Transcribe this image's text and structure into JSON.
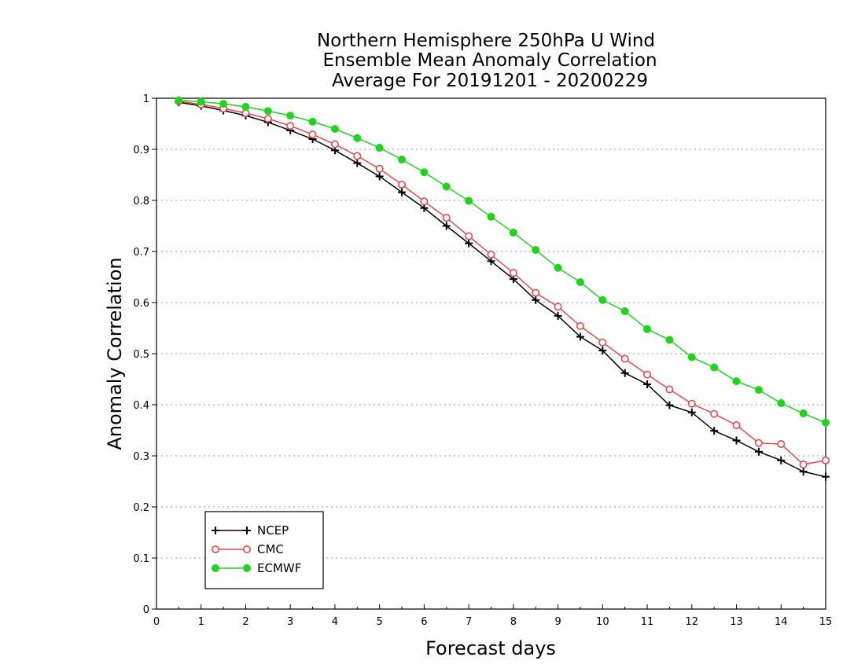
{
  "chart_data": {
    "type": "line",
    "title": [
      "Northern Hemisphere 250hPa U Wind",
      "Ensemble Mean Anomaly Correlation",
      "Average For 20191201 - 20200229"
    ],
    "xlabel": "Forecast days",
    "ylabel": "Anomaly Correlation",
    "xlim": [
      0,
      15
    ],
    "ylim": [
      0,
      1
    ],
    "xticks": [
      0,
      1,
      2,
      3,
      4,
      5,
      6,
      7,
      8,
      9,
      10,
      11,
      12,
      13,
      14,
      15
    ],
    "xtick_labels": [
      "0",
      "1",
      "2",
      "3",
      "4",
      "5",
      "6",
      "7",
      "8",
      "9",
      "10",
      "11",
      "12",
      "13",
      "14",
      "15"
    ],
    "yticks": [
      0,
      0.1,
      0.2,
      0.3,
      0.4,
      0.5,
      0.6,
      0.7,
      0.8,
      0.9,
      1
    ],
    "ytick_labels": [
      "0",
      "0.1",
      "0.2",
      "0.3",
      "0.4",
      "0.5",
      "0.6",
      "0.7",
      "0.8",
      "0.9",
      "1"
    ],
    "grid": true,
    "legend_position": "bottom-left",
    "x": [
      0.5,
      1,
      1.5,
      2,
      2.5,
      3,
      3.5,
      4,
      4.5,
      5,
      5.5,
      6,
      6.5,
      7,
      7.5,
      8,
      8.5,
      9,
      9.5,
      10,
      10.5,
      11,
      11.5,
      12,
      12.5,
      13,
      13.5,
      14,
      14.5,
      15
    ],
    "series": [
      {
        "name": "NCEP",
        "marker": "plus",
        "color": "#000000",
        "values": [
          0.992,
          0.985,
          0.976,
          0.966,
          0.953,
          0.937,
          0.92,
          0.898,
          0.873,
          0.847,
          0.816,
          0.785,
          0.75,
          0.716,
          0.681,
          0.646,
          0.605,
          0.574,
          0.533,
          0.506,
          0.462,
          0.44,
          0.399,
          0.385,
          0.349,
          0.33,
          0.308,
          0.291,
          0.269,
          0.259
        ]
      },
      {
        "name": "CMC",
        "marker": "open-circle",
        "color": "#e8474c",
        "values": [
          0.994,
          0.988,
          0.98,
          0.971,
          0.96,
          0.946,
          0.929,
          0.91,
          0.887,
          0.862,
          0.831,
          0.798,
          0.766,
          0.73,
          0.694,
          0.658,
          0.619,
          0.592,
          0.554,
          0.522,
          0.49,
          0.459,
          0.43,
          0.402,
          0.382,
          0.36,
          0.325,
          0.323,
          0.283,
          0.291
        ]
      },
      {
        "name": "ECMWF",
        "marker": "filled-circle",
        "color": "#1fd41f",
        "values": [
          0.996,
          0.993,
          0.989,
          0.983,
          0.975,
          0.966,
          0.954,
          0.94,
          0.922,
          0.903,
          0.88,
          0.855,
          0.827,
          0.799,
          0.768,
          0.737,
          0.703,
          0.668,
          0.64,
          0.605,
          0.583,
          0.548,
          0.527,
          0.493,
          0.473,
          0.446,
          0.429,
          0.403,
          0.383,
          0.365
        ]
      }
    ]
  }
}
